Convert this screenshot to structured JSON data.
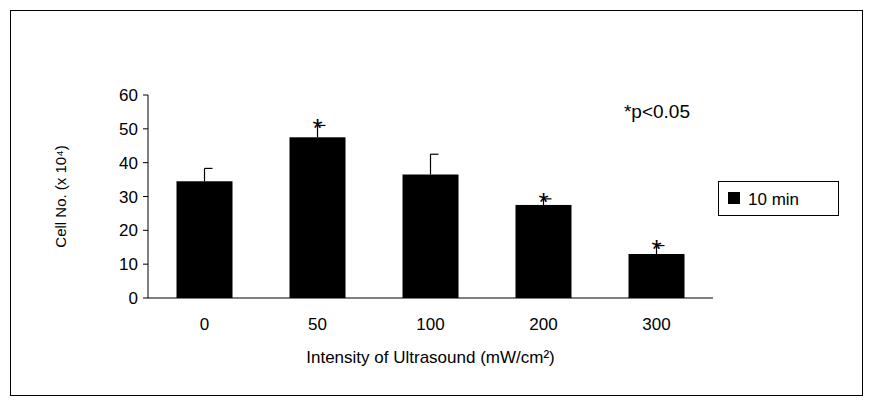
{
  "chart_data": {
    "type": "bar",
    "categories": [
      "0",
      "50",
      "100",
      "200",
      "300"
    ],
    "values": [
      34.5,
      47.5,
      36.5,
      27.5,
      13
    ],
    "errors": [
      3.8,
      3.5,
      6,
      1.8,
      2.5
    ],
    "markers": [
      null,
      "*",
      null,
      "*",
      "*"
    ],
    "series_name": "10 min",
    "color": "#000000",
    "x_label": "Intensity of Ultrasound (mW/cm²)",
    "y_label": "Cell No. (x 10⁴)",
    "annotation": "*p<0.05",
    "ylim": [
      0,
      60
    ],
    "yticks": [
      0,
      10,
      20,
      30,
      40,
      50,
      60
    ],
    "grid": false,
    "legend": "right"
  }
}
